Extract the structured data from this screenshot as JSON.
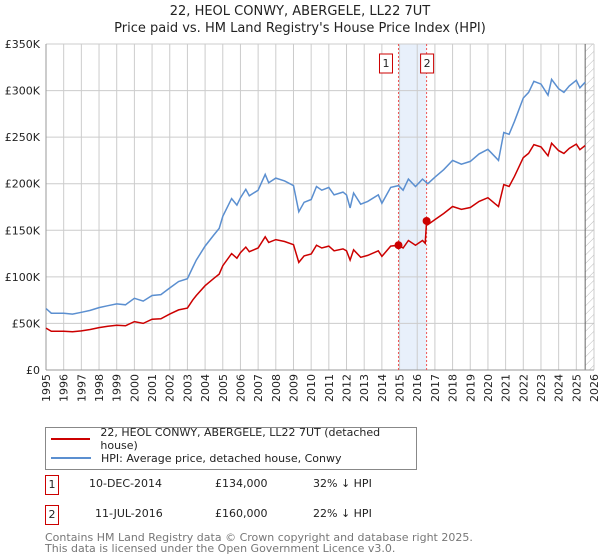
{
  "header": {
    "title": "22, HEOL CONWY, ABERGELE, LL22 7UT",
    "subtitle": "Price paid vs. HM Land Registry's House Price Index (HPI)"
  },
  "legend": {
    "property": "22, HEOL CONWY, ABERGELE, LL22 7UT (detached house)",
    "hpi": "HPI: Average price, detached house, Conwy"
  },
  "colors": {
    "property": "#cc0000",
    "hpi": "#5b8fd0",
    "band": "#e8f0fb"
  },
  "sales": [
    {
      "num": "1",
      "date": "10-DEC-2014",
      "price": "£134,000",
      "diff": "32% ↓ HPI",
      "x": 2014.94,
      "y": 134
    },
    {
      "num": "2",
      "date": "11-JUL-2016",
      "price": "£160,000",
      "diff": "22% ↓ HPI",
      "x": 2016.53,
      "y": 160
    }
  ],
  "footer": {
    "line1": "Contains HM Land Registry data © Crown copyright and database right 2025.",
    "line2": "This data is licensed under the Open Government Licence v3.0."
  },
  "chart_data": {
    "type": "line",
    "title": "22, HEOL CONWY, ABERGELE, LL22 7UT",
    "subtitle": "Price paid vs. HM Land Registry's House Price Index (HPI)",
    "xlim": [
      1995,
      2026
    ],
    "ylim": [
      0,
      350
    ],
    "x_ticks": [
      "1995",
      "1996",
      "1997",
      "1998",
      "1999",
      "2000",
      "2001",
      "2002",
      "2003",
      "2004",
      "2005",
      "2006",
      "2007",
      "2008",
      "2009",
      "2010",
      "2011",
      "2012",
      "2013",
      "2014",
      "2015",
      "2016",
      "2017",
      "2018",
      "2019",
      "2020",
      "2021",
      "2022",
      "2023",
      "2024",
      "2025",
      "2026"
    ],
    "y_ticks": [
      {
        "v": 0,
        "label": "£0"
      },
      {
        "v": 50,
        "label": "£50K"
      },
      {
        "v": 100,
        "label": "£100K"
      },
      {
        "v": 150,
        "label": "£150K"
      },
      {
        "v": 200,
        "label": "£200K"
      },
      {
        "v": 250,
        "label": "£250K"
      },
      {
        "v": 300,
        "label": "£300K"
      },
      {
        "v": 350,
        "label": "£350K"
      }
    ],
    "data_end": 2025.5,
    "series": [
      {
        "name": "HPI: Average price, detached house, Conwy",
        "color": "#5b8fd0",
        "x": [
          1995,
          1995.3,
          1996,
          1996.5,
          1997,
          1997.5,
          1998,
          1998.5,
          1999,
          1999.5,
          2000,
          2000.5,
          2001,
          2001.5,
          2002,
          2002.5,
          2003,
          2003.3,
          2003.5,
          2004,
          2004.5,
          2004.8,
          2005,
          2005.5,
          2005.8,
          2006,
          2006.3,
          2006.5,
          2007,
          2007.4,
          2007.6,
          2008,
          2008.5,
          2009,
          2009.3,
          2009.6,
          2010,
          2010.3,
          2010.6,
          2011,
          2011.3,
          2011.8,
          2012,
          2012.2,
          2012.4,
          2012.8,
          2013.2,
          2013.8,
          2014,
          2014.5,
          2014.94,
          2015.2,
          2015.5,
          2015.9,
          2016.3,
          2016.6,
          2017,
          2017.5,
          2018,
          2018.5,
          2019,
          2019.5,
          2020,
          2020.4,
          2020.6,
          2020.9,
          2021.2,
          2021.5,
          2022,
          2022.3,
          2022.6,
          2023,
          2023.4,
          2023.6,
          2024,
          2024.3,
          2024.6,
          2025,
          2025.2,
          2025.5
        ],
        "y": [
          66,
          61,
          61,
          60,
          62,
          64,
          67,
          69,
          71,
          70,
          77,
          74,
          80,
          81,
          88,
          95,
          98,
          110,
          118,
          133,
          145,
          152,
          165,
          184,
          177,
          185,
          194,
          187,
          193,
          210,
          201,
          206,
          203,
          198,
          170,
          180,
          183,
          197,
          193,
          196,
          188,
          191,
          188,
          174,
          190,
          178,
          181,
          188,
          179,
          196,
          198,
          193,
          205,
          197,
          205,
          200,
          207,
          215,
          225,
          221,
          224,
          232,
          237,
          229,
          225,
          255,
          253,
          267,
          292,
          298,
          310,
          307,
          295,
          312,
          302,
          298,
          305,
          311,
          303,
          309
        ]
      },
      {
        "name": "22, HEOL CONWY, ABERGELE, LL22 7UT (detached house)",
        "color": "#cc0000",
        "x": [
          1995,
          1995.3,
          1996,
          1996.5,
          1997,
          1997.5,
          1998,
          1998.5,
          1999,
          1999.5,
          2000,
          2000.5,
          2001,
          2001.5,
          2002,
          2002.5,
          2003,
          2003.3,
          2003.5,
          2004,
          2004.5,
          2004.8,
          2005,
          2005.5,
          2005.8,
          2006,
          2006.3,
          2006.5,
          2007,
          2007.4,
          2007.6,
          2008,
          2008.5,
          2009,
          2009.3,
          2009.6,
          2010,
          2010.3,
          2010.6,
          2011,
          2011.3,
          2011.8,
          2012,
          2012.2,
          2012.4,
          2012.8,
          2013.2,
          2013.8,
          2014,
          2014.5,
          2014.94,
          2015.2,
          2015.5,
          2015.9,
          2016.3,
          2016.45,
          2016.53,
          2016.6,
          2017,
          2017.5,
          2018,
          2018.5,
          2019,
          2019.5,
          2020,
          2020.4,
          2020.6,
          2020.9,
          2021.2,
          2021.5,
          2022,
          2022.3,
          2022.6,
          2023,
          2023.4,
          2023.6,
          2024,
          2024.3,
          2024.6,
          2025,
          2025.2,
          2025.5
        ],
        "y": [
          45,
          41.5,
          41.5,
          41,
          42,
          43.5,
          45.5,
          47,
          48,
          47.5,
          52,
          50,
          54.5,
          55,
          60,
          64.5,
          66.5,
          75,
          80,
          90.5,
          98.5,
          103,
          112,
          125,
          120,
          126,
          132,
          127,
          131,
          143,
          137,
          140,
          138,
          134.5,
          115.5,
          122.5,
          124.5,
          134,
          131,
          133,
          128,
          130,
          128,
          118,
          129,
          121,
          123,
          128,
          122,
          133,
          134,
          131,
          139,
          134,
          139,
          136,
          160,
          156,
          161.5,
          168,
          175.5,
          172.5,
          174.5,
          181,
          185,
          178.5,
          175.5,
          199,
          197,
          208,
          228,
          232.5,
          242,
          239.5,
          230,
          243.5,
          235.5,
          232.5,
          238,
          242.5,
          236.5,
          241
        ]
      }
    ]
  }
}
